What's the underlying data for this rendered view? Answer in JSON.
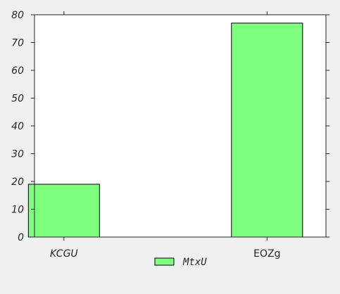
{
  "chart_data": {
    "type": "bar",
    "categories": [
      "KCGU",
      "EOZg"
    ],
    "series": [
      {
        "name": "MtxU",
        "values": [
          19,
          77
        ],
        "color": "#7fff7f"
      }
    ],
    "ylim": [
      0,
      80
    ],
    "yticks": [
      0,
      10,
      20,
      30,
      40,
      50,
      60,
      70,
      80
    ],
    "ytick_labels": [
      "0",
      "10",
      "20",
      "30",
      "40",
      "50",
      "60",
      "70",
      "80"
    ],
    "grid": false,
    "legend": {
      "position": "bottom-center",
      "entries": [
        "MtxU"
      ]
    },
    "title": "",
    "xlabel": "",
    "ylabel": ""
  }
}
